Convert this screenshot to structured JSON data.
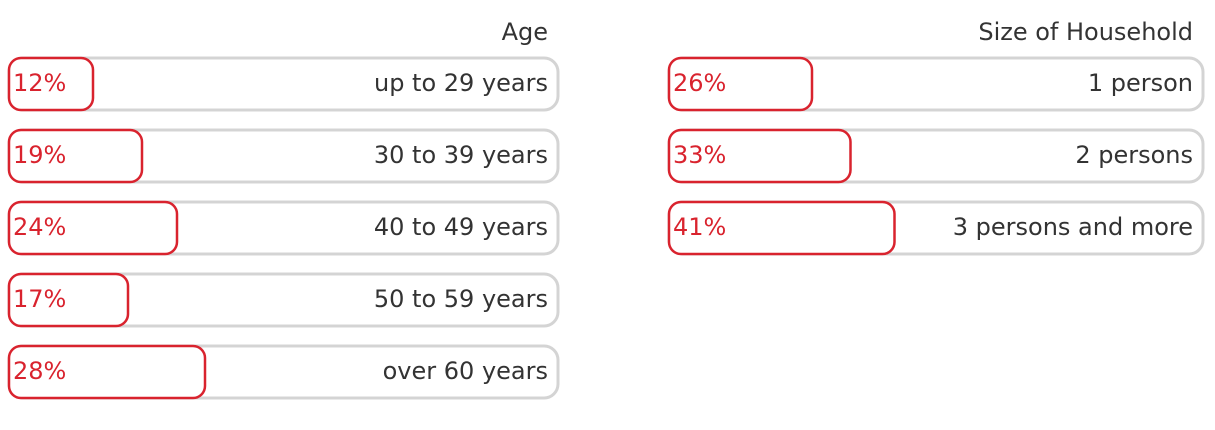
{
  "chart_data": [
    {
      "type": "bar",
      "title": "Age",
      "categories": [
        "up to 29 years",
        "30 to 39 years",
        "40 to 49 years",
        "50 to 59 years",
        "over 60 years"
      ],
      "values": [
        12,
        19,
        24,
        17,
        28
      ],
      "value_labels": [
        "12%",
        "19%",
        "24%",
        "17%",
        "28%"
      ],
      "color": "#d9232e"
    },
    {
      "type": "bar",
      "title": "Size of Household",
      "categories": [
        "1 person",
        "2 persons",
        "3 persons and more"
      ],
      "values": [
        26,
        33,
        41
      ],
      "value_labels": [
        "26%",
        "33%",
        "41%"
      ],
      "color": "#d9232e"
    }
  ]
}
